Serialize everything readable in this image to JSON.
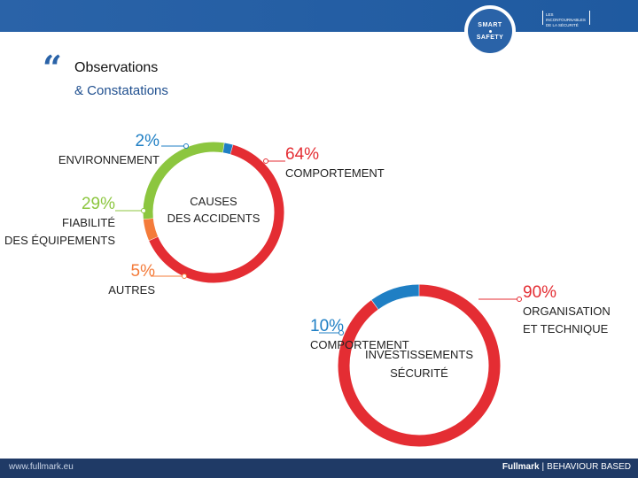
{
  "header": {
    "badge_line1": "SMART",
    "badge_line2": "SAFETY",
    "tagline": "LES INCONTOURNABLES DE LA SÉCURITÉ"
  },
  "slide": {
    "title": "Observations",
    "subtitle": "& Constatations"
  },
  "colors": {
    "brand_blue": "#2a63a8",
    "red": "#e42d33",
    "green": "#8cc63f",
    "orange": "#f47b3a",
    "blue": "#1f7fc4"
  },
  "chart_data": [
    {
      "type": "pie",
      "title": "CAUSES DES ACCIDENTS",
      "title_lines": [
        "CAUSES",
        "DES ACCIDENTS"
      ],
      "slices": [
        {
          "label_lines": [
            "COMPORTEMENT"
          ],
          "value": 64,
          "display": "64%",
          "color": "#e42d33"
        },
        {
          "label_lines": [
            "AUTRES"
          ],
          "value": 5,
          "display": "5%",
          "color": "#f47b3a"
        },
        {
          "label_lines": [
            "FIABILITÉ",
            "DES ÉQUIPEMENTS"
          ],
          "value": 29,
          "display": "29%",
          "color": "#8cc63f"
        },
        {
          "label_lines": [
            "ENVIRONNEMENT"
          ],
          "value": 2,
          "display": "2%",
          "color": "#1f7fc4"
        }
      ]
    },
    {
      "type": "pie",
      "title": "INVESTISSEMENTS SÉCURITÉ",
      "title_lines": [
        "INVESTISSEMENTS",
        "SÉCURITÉ"
      ],
      "slices": [
        {
          "label_lines": [
            "ORGANISATION",
            "ET TECHNIQUE"
          ],
          "value": 90,
          "display": "90%",
          "color": "#e42d33"
        },
        {
          "label_lines": [
            "COMPORTEMENT"
          ],
          "value": 10,
          "display": "10%",
          "color": "#1f7fc4"
        }
      ]
    }
  ],
  "footer": {
    "url": "www.fullmark.eu",
    "brand": "Fullmark",
    "tagline": "BEHAVIOUR BASED"
  }
}
